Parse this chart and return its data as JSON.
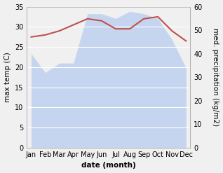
{
  "months": [
    "Jan",
    "Feb",
    "Mar",
    "Apr",
    "May",
    "Jun",
    "Jul",
    "Aug",
    "Sep",
    "Oct",
    "Nov",
    "Dec"
  ],
  "temperature": [
    27.5,
    28.0,
    29.0,
    30.5,
    32.0,
    31.5,
    29.5,
    29.5,
    32.0,
    32.5,
    29.0,
    26.5
  ],
  "precipitation": [
    40,
    32,
    36,
    36,
    57,
    57,
    55,
    58,
    57,
    55,
    46,
    34
  ],
  "temp_color": "#c0504d",
  "precip_fill_color": "#c5d5f0",
  "ylabel_left": "max temp (C)",
  "ylabel_right": "med. precipitation (kg/m2)",
  "xlabel": "date (month)",
  "ylim_left": [
    0,
    35
  ],
  "ylim_right": [
    0,
    60
  ],
  "yticks_left": [
    0,
    5,
    10,
    15,
    20,
    25,
    30,
    35
  ],
  "yticks_right": [
    0,
    10,
    20,
    30,
    40,
    50,
    60
  ],
  "bg_color": "#f0f0f0",
  "label_fontsize": 7.5,
  "tick_fontsize": 7
}
